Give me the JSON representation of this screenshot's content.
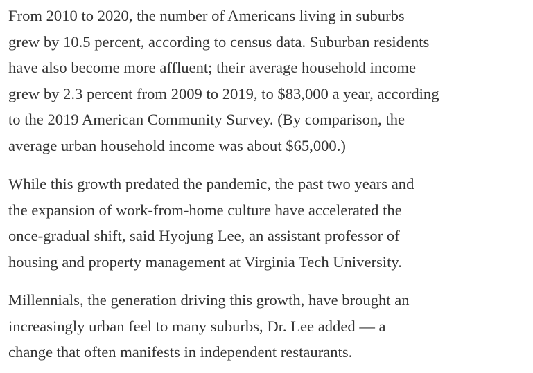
{
  "article": {
    "paragraphs": [
      {
        "lines": [
          "From 2010 to 2020, the number of Americans living in suburbs",
          "grew by 10.5 percent, according to census data. Suburban residents",
          "have also become more affluent; their average household income",
          "grew by 2.3 percent from 2009 to 2019, to $83,000 a year, according",
          "to the 2019 American Community Survey. (By comparison, the",
          "average urban household income was about $65,000.)"
        ]
      },
      {
        "lines": [
          "While this growth predated the pandemic, the past two years and",
          "the expansion of work-from-home culture have accelerated the",
          "once-gradual shift, said Hyojung Lee, an assistant professor of",
          "housing and property management at Virginia Tech University."
        ]
      },
      {
        "lines": [
          "Millennials, the generation driving this growth, have brought an",
          "increasingly urban feel to many suburbs, Dr. Lee added — a",
          "change that often manifests in independent restaurants."
        ]
      }
    ]
  }
}
